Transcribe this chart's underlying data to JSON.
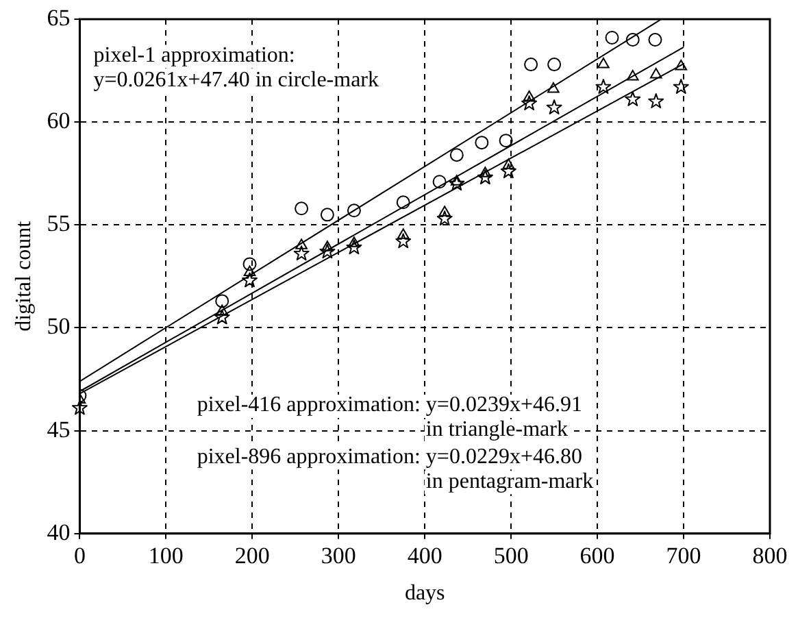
{
  "chart_data": {
    "type": "scatter",
    "xlabel": "days",
    "ylabel": "digital count",
    "xlim": [
      0,
      800
    ],
    "xticks": [
      0,
      100,
      200,
      300,
      400,
      500,
      600,
      700,
      800
    ],
    "ylim": [
      40,
      65
    ],
    "yticks": [
      40,
      45,
      50,
      55,
      60,
      65
    ],
    "grid": true,
    "legend": false,
    "annotations": [
      "pixel-1 approximation:\ny=0.0261x+47.40 in circle-mark",
      "pixel-416 approximation: y=0.0239x+46.91\nin triangle-mark",
      "pixel-896 approximation: y=0.0229x+46.80\nin pentagram-mark"
    ],
    "series": [
      {
        "type": "scatter",
        "marker": "circle",
        "color": "#000000",
        "x": [
          0,
          165,
          197,
          257,
          287,
          318,
          375,
          417,
          437,
          466,
          494,
          523,
          550,
          617,
          641,
          667
        ],
        "values": [
          46.7,
          51.3,
          53.1,
          55.8,
          55.5,
          55.7,
          56.1,
          57.1,
          58.4,
          59.0,
          59.1,
          62.8,
          62.8,
          64.1,
          64.0,
          64.0
        ]
      },
      {
        "type": "scatter",
        "marker": "triangle",
        "color": "#000000",
        "x": [
          0,
          165,
          197,
          257,
          287,
          318,
          375,
          423,
          437,
          470,
          497,
          521,
          549,
          607,
          641,
          668,
          697
        ],
        "values": [
          46.5,
          50.8,
          52.7,
          54.0,
          53.9,
          54.1,
          54.5,
          55.6,
          57.1,
          57.5,
          57.9,
          61.2,
          61.6,
          62.8,
          62.2,
          62.3,
          62.7
        ]
      },
      {
        "type": "scatter",
        "marker": "star",
        "color": "#000000",
        "x": [
          0,
          165,
          197,
          257,
          287,
          318,
          375,
          423,
          437,
          470,
          497,
          521,
          550,
          607,
          641,
          668,
          697
        ],
        "values": [
          46.1,
          50.5,
          52.3,
          53.6,
          53.7,
          53.9,
          54.2,
          55.3,
          57.0,
          57.3,
          57.6,
          60.9,
          60.7,
          61.7,
          61.1,
          61.0,
          61.7
        ]
      },
      {
        "type": "line",
        "marker": "none",
        "color": "#000000",
        "x": [
          0,
          673
        ],
        "values": [
          47.4,
          64.97
        ]
      },
      {
        "type": "line",
        "marker": "none",
        "color": "#000000",
        "x": [
          0,
          700
        ],
        "values": [
          46.91,
          63.64
        ]
      },
      {
        "type": "line",
        "marker": "none",
        "color": "#000000",
        "x": [
          0,
          700
        ],
        "values": [
          46.8,
          62.83
        ]
      }
    ]
  }
}
